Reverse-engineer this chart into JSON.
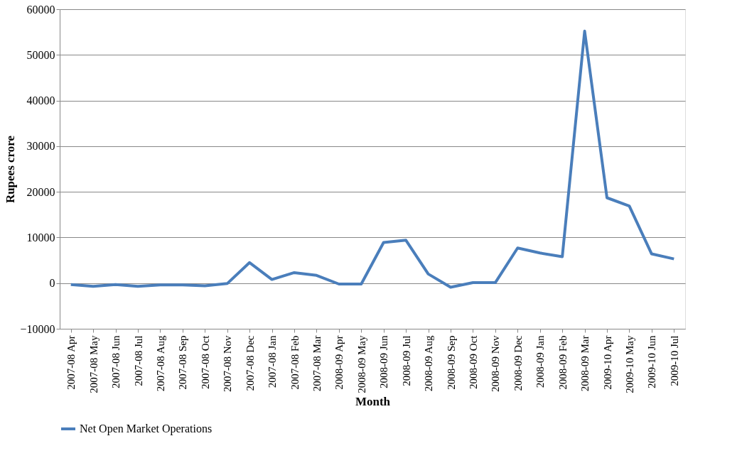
{
  "chart_data": {
    "type": "line",
    "xlabel": "Month",
    "ylabel": "Rupees crore",
    "categories": [
      "2007-08 Apr",
      "2007-08 May",
      "2007-08 Jun",
      "2007-08 Jul",
      "2007-08 Aug",
      "2007-08 Sep",
      "2007-08 Oct",
      "2007-08 Nov",
      "2007-08 Dec",
      "2007-08 Jan",
      "2007-08 Feb",
      "2007-08 Mar",
      "2008-09 Apr",
      "2008-09 May",
      "2008-09 Jun",
      "2008-09 Jul",
      "2008-09 Aug",
      "2008-09 Sep",
      "2008-09 Oct",
      "2008-09 Nov",
      "2008-09 Dec",
      "2008-09 Jan",
      "2008-09 Feb",
      "2008-09 Mar",
      "2009-10 Apr",
      "2009-10 May",
      "2009-10 Jun",
      "2009-10 Jul"
    ],
    "series": [
      {
        "name": "Net Open Market Operations",
        "color": "#4a7ebb",
        "values": [
          -300,
          -700,
          -300,
          -700,
          -400,
          -400,
          -600,
          -100,
          4500,
          800,
          2300,
          1700,
          -200,
          -200,
          8900,
          9400,
          2000,
          -900,
          100,
          100,
          7700,
          6600,
          5800,
          55200,
          18700,
          16900,
          6400,
          5300
        ]
      }
    ],
    "ylim": [
      -10000,
      60000
    ],
    "yticks": [
      -10000,
      0,
      10000,
      20000,
      30000,
      40000,
      50000,
      60000
    ],
    "grid": "y",
    "legend": "bottom",
    "marker": "none",
    "line_style": "solid"
  }
}
